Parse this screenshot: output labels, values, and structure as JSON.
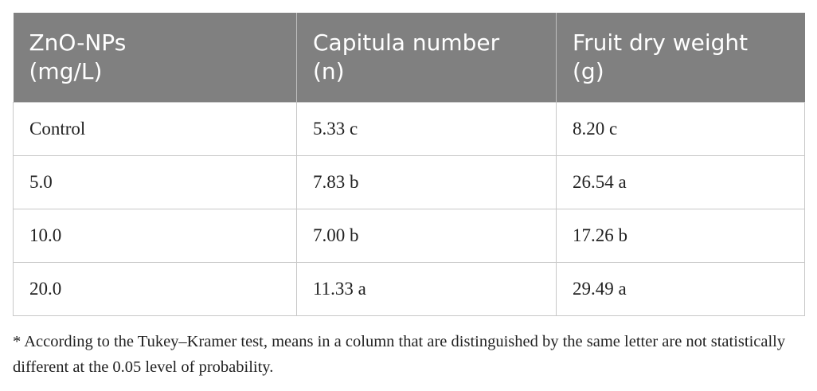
{
  "table": {
    "header": [
      [
        "ZnO-NPs",
        "(mg/L)"
      ],
      [
        "Capitula number",
        "(n)"
      ],
      [
        "Fruit dry weight",
        "(g)"
      ]
    ],
    "rows": [
      [
        "Control",
        "5.33 c",
        "8.20 c"
      ],
      [
        "5.0",
        "7.83 b",
        "26.54 a"
      ],
      [
        "10.0",
        "7.00 b",
        "17.26 b"
      ],
      [
        "20.0",
        "11.33 a",
        "29.49 a"
      ]
    ]
  },
  "footnote": "* According to the Tukey–Kramer test, means in a column that are distinguished by the same letter are not statistically different at the 0.05 level of probability."
}
